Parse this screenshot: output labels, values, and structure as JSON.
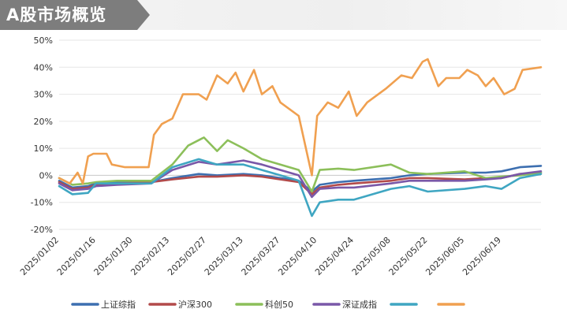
{
  "header": {
    "title": "A股市场概览"
  },
  "chart_data": {
    "type": "line",
    "title": "A股市场概览",
    "xlabel": "",
    "ylabel": "",
    "ylim": [
      -0.2,
      0.5
    ],
    "yticks": [
      "-20%",
      "-10%",
      "0%",
      "10%",
      "20%",
      "30%",
      "40%",
      "50%"
    ],
    "xticks": [
      "2025/01/02",
      "2025/01/16",
      "2025/01/30",
      "2025/02/13",
      "2025/02/27",
      "2025/03/13",
      "2025/03/27",
      "2025/04/10",
      "2025/04/24",
      "2025/05/08",
      "2025/05/22",
      "2025/06/05",
      "2025/06/19"
    ],
    "x_start": "2025/01/02",
    "x_end": "2025/07/04",
    "grid": true,
    "legend_position": "bottom",
    "series": [
      {
        "name": "上证综指",
        "color": "#3d6fb0",
        "points": [
          [
            "2025/01/02",
            -0.02
          ],
          [
            "2025/01/07",
            -0.045
          ],
          [
            "2025/01/13",
            -0.04
          ],
          [
            "2025/01/16",
            -0.03
          ],
          [
            "2025/01/24",
            -0.025
          ],
          [
            "2025/02/06",
            -0.025
          ],
          [
            "2025/02/14",
            -0.01
          ],
          [
            "2025/02/24",
            0.005
          ],
          [
            "2025/03/03",
            0.0
          ],
          [
            "2025/03/13",
            0.005
          ],
          [
            "2025/03/20",
            0.0
          ],
          [
            "2025/03/27",
            -0.01
          ],
          [
            "2025/04/03",
            -0.02
          ],
          [
            "2025/04/08",
            -0.06
          ],
          [
            "2025/04/11",
            -0.035
          ],
          [
            "2025/04/18",
            -0.025
          ],
          [
            "2025/04/24",
            -0.02
          ],
          [
            "2025/05/08",
            -0.01
          ],
          [
            "2025/05/15",
            0.0
          ],
          [
            "2025/05/22",
            0.005
          ],
          [
            "2025/06/05",
            0.01
          ],
          [
            "2025/06/13",
            0.01
          ],
          [
            "2025/06/19",
            0.015
          ],
          [
            "2025/06/26",
            0.03
          ],
          [
            "2025/07/04",
            0.035
          ]
        ]
      },
      {
        "name": "沪深300",
        "color": "#b24a4a",
        "points": [
          [
            "2025/01/02",
            -0.025
          ],
          [
            "2025/01/07",
            -0.05
          ],
          [
            "2025/01/13",
            -0.045
          ],
          [
            "2025/01/16",
            -0.035
          ],
          [
            "2025/01/24",
            -0.03
          ],
          [
            "2025/02/06",
            -0.025
          ],
          [
            "2025/02/14",
            -0.015
          ],
          [
            "2025/02/24",
            -0.005
          ],
          [
            "2025/03/03",
            -0.005
          ],
          [
            "2025/03/13",
            0.0
          ],
          [
            "2025/03/20",
            -0.005
          ],
          [
            "2025/03/27",
            -0.015
          ],
          [
            "2025/04/03",
            -0.025
          ],
          [
            "2025/04/08",
            -0.07
          ],
          [
            "2025/04/11",
            -0.045
          ],
          [
            "2025/04/18",
            -0.035
          ],
          [
            "2025/04/24",
            -0.03
          ],
          [
            "2025/05/08",
            -0.02
          ],
          [
            "2025/05/15",
            -0.01
          ],
          [
            "2025/05/22",
            -0.01
          ],
          [
            "2025/06/05",
            -0.015
          ],
          [
            "2025/06/13",
            -0.01
          ],
          [
            "2025/06/19",
            -0.01
          ],
          [
            "2025/06/26",
            0.005
          ],
          [
            "2025/07/04",
            0.01
          ]
        ]
      },
      {
        "name": "科创50",
        "color": "#8cbf5a",
        "points": [
          [
            "2025/01/02",
            -0.01
          ],
          [
            "2025/01/07",
            -0.035
          ],
          [
            "2025/01/13",
            -0.03
          ],
          [
            "2025/01/16",
            -0.025
          ],
          [
            "2025/01/24",
            -0.02
          ],
          [
            "2025/02/06",
            -0.02
          ],
          [
            "2025/02/14",
            0.04
          ],
          [
            "2025/02/20",
            0.11
          ],
          [
            "2025/02/26",
            0.14
          ],
          [
            "2025/03/03",
            0.09
          ],
          [
            "2025/03/07",
            0.13
          ],
          [
            "2025/03/13",
            0.1
          ],
          [
            "2025/03/20",
            0.06
          ],
          [
            "2025/03/27",
            0.04
          ],
          [
            "2025/04/03",
            0.02
          ],
          [
            "2025/04/08",
            -0.06
          ],
          [
            "2025/04/11",
            0.02
          ],
          [
            "2025/04/18",
            0.025
          ],
          [
            "2025/04/24",
            0.02
          ],
          [
            "2025/05/08",
            0.04
          ],
          [
            "2025/05/15",
            0.01
          ],
          [
            "2025/05/22",
            0.005
          ],
          [
            "2025/06/05",
            0.015
          ],
          [
            "2025/06/13",
            -0.01
          ],
          [
            "2025/06/19",
            -0.005
          ],
          [
            "2025/06/26",
            0.0
          ],
          [
            "2025/07/04",
            0.01
          ]
        ]
      },
      {
        "name": "深证成指",
        "color": "#7a58a8",
        "points": [
          [
            "2025/01/02",
            -0.03
          ],
          [
            "2025/01/07",
            -0.055
          ],
          [
            "2025/01/13",
            -0.05
          ],
          [
            "2025/01/16",
            -0.04
          ],
          [
            "2025/01/24",
            -0.035
          ],
          [
            "2025/02/06",
            -0.03
          ],
          [
            "2025/02/14",
            0.02
          ],
          [
            "2025/02/24",
            0.05
          ],
          [
            "2025/03/03",
            0.04
          ],
          [
            "2025/03/13",
            0.055
          ],
          [
            "2025/03/20",
            0.04
          ],
          [
            "2025/03/27",
            0.02
          ],
          [
            "2025/04/03",
            0.0
          ],
          [
            "2025/04/08",
            -0.08
          ],
          [
            "2025/04/11",
            -0.05
          ],
          [
            "2025/04/18",
            -0.045
          ],
          [
            "2025/04/24",
            -0.045
          ],
          [
            "2025/05/08",
            -0.03
          ],
          [
            "2025/05/15",
            -0.02
          ],
          [
            "2025/05/22",
            -0.02
          ],
          [
            "2025/06/05",
            -0.02
          ],
          [
            "2025/06/13",
            -0.015
          ],
          [
            "2025/06/19",
            -0.01
          ],
          [
            "2025/06/26",
            0.005
          ],
          [
            "2025/07/04",
            0.015
          ]
        ]
      },
      {
        "name": "",
        "color": "#3fa6c2",
        "points": [
          [
            "2025/01/02",
            -0.04
          ],
          [
            "2025/01/07",
            -0.07
          ],
          [
            "2025/01/13",
            -0.065
          ],
          [
            "2025/01/16",
            -0.03
          ],
          [
            "2025/01/24",
            -0.03
          ],
          [
            "2025/02/06",
            -0.03
          ],
          [
            "2025/02/14",
            0.03
          ],
          [
            "2025/02/24",
            0.06
          ],
          [
            "2025/03/03",
            0.04
          ],
          [
            "2025/03/13",
            0.04
          ],
          [
            "2025/03/20",
            0.02
          ],
          [
            "2025/03/27",
            0.0
          ],
          [
            "2025/04/03",
            -0.02
          ],
          [
            "2025/04/08",
            -0.15
          ],
          [
            "2025/04/11",
            -0.1
          ],
          [
            "2025/04/18",
            -0.09
          ],
          [
            "2025/04/24",
            -0.09
          ],
          [
            "2025/05/08",
            -0.05
          ],
          [
            "2025/05/15",
            -0.04
          ],
          [
            "2025/05/22",
            -0.06
          ],
          [
            "2025/06/05",
            -0.05
          ],
          [
            "2025/06/13",
            -0.04
          ],
          [
            "2025/06/19",
            -0.05
          ],
          [
            "2025/06/26",
            -0.01
          ],
          [
            "2025/07/04",
            0.005
          ]
        ]
      },
      {
        "name": "",
        "color": "#f0a050",
        "points": [
          [
            "2025/01/02",
            -0.01
          ],
          [
            "2025/01/06",
            -0.03
          ],
          [
            "2025/01/09",
            0.01
          ],
          [
            "2025/01/11",
            -0.03
          ],
          [
            "2025/01/13",
            0.07
          ],
          [
            "2025/01/15",
            0.08
          ],
          [
            "2025/01/20",
            0.08
          ],
          [
            "2025/01/22",
            0.04
          ],
          [
            "2025/01/27",
            0.03
          ],
          [
            "2025/02/05",
            0.03
          ],
          [
            "2025/02/07",
            0.15
          ],
          [
            "2025/02/10",
            0.19
          ],
          [
            "2025/02/14",
            0.21
          ],
          [
            "2025/02/18",
            0.3
          ],
          [
            "2025/02/24",
            0.3
          ],
          [
            "2025/02/27",
            0.28
          ],
          [
            "2025/03/03",
            0.37
          ],
          [
            "2025/03/07",
            0.34
          ],
          [
            "2025/03/10",
            0.38
          ],
          [
            "2025/03/13",
            0.31
          ],
          [
            "2025/03/17",
            0.39
          ],
          [
            "2025/03/20",
            0.3
          ],
          [
            "2025/03/24",
            0.33
          ],
          [
            "2025/03/27",
            0.27
          ],
          [
            "2025/04/03",
            0.22
          ],
          [
            "2025/04/08",
            0.0
          ],
          [
            "2025/04/10",
            0.22
          ],
          [
            "2025/04/14",
            0.27
          ],
          [
            "2025/04/18",
            0.25
          ],
          [
            "2025/04/22",
            0.31
          ],
          [
            "2025/04/25",
            0.22
          ],
          [
            "2025/04/29",
            0.27
          ],
          [
            "2025/05/06",
            0.32
          ],
          [
            "2025/05/12",
            0.37
          ],
          [
            "2025/05/16",
            0.36
          ],
          [
            "2025/05/20",
            0.42
          ],
          [
            "2025/05/22",
            0.43
          ],
          [
            "2025/05/26",
            0.33
          ],
          [
            "2025/05/29",
            0.36
          ],
          [
            "2025/06/03",
            0.36
          ],
          [
            "2025/06/06",
            0.39
          ],
          [
            "2025/06/10",
            0.37
          ],
          [
            "2025/06/13",
            0.33
          ],
          [
            "2025/06/16",
            0.36
          ],
          [
            "2025/06/20",
            0.3
          ],
          [
            "2025/06/24",
            0.32
          ],
          [
            "2025/06/27",
            0.39
          ],
          [
            "2025/07/04",
            0.4
          ]
        ]
      }
    ]
  }
}
